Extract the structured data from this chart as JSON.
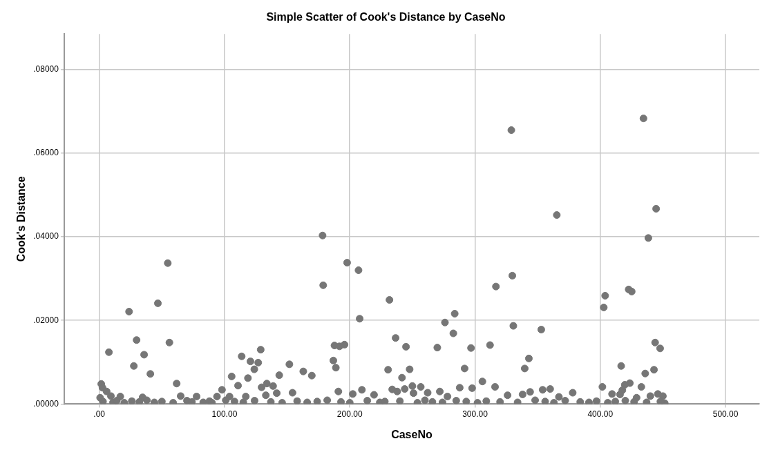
{
  "chart_data": {
    "type": "scatter",
    "title": "Simple Scatter of Cook's Distance by CaseNo",
    "xlabel": "CaseNo",
    "ylabel": "Cook's Distance",
    "xlim": [
      -28,
      527
    ],
    "ylim": [
      0,
      0.0885
    ],
    "xticks": [
      {
        "value": 0,
        "label": ".00"
      },
      {
        "value": 100,
        "label": "100.00"
      },
      {
        "value": 200,
        "label": "200.00"
      },
      {
        "value": 300,
        "label": "300.00"
      },
      {
        "value": 400,
        "label": "400.00"
      },
      {
        "value": 500,
        "label": "500.00"
      }
    ],
    "yticks": [
      {
        "value": 0,
        "label": ".00000"
      },
      {
        "value": 0.02,
        "label": ".02000"
      },
      {
        "value": 0.04,
        "label": ".04000"
      },
      {
        "value": 0.06,
        "label": ".06000"
      },
      {
        "value": 0.08,
        "label": ".08000"
      }
    ],
    "grid": true,
    "marker": "circle",
    "series": [
      {
        "color": "#767676",
        "x": [
          7.7,
          23.8,
          46.8,
          29.8,
          27.6,
          35.8,
          40.8,
          56,
          54.7,
          61.8,
          1.6,
          2.6,
          5.9,
          9.3,
          0.7,
          16.8,
          34.6,
          65,
          77.7,
          94,
          98,
          105.7,
          110.8,
          113.7,
          118.7,
          120.7,
          123.8,
          126.9,
          128.9,
          129.6,
          133.8,
          138.8,
          143.7,
          151.8,
          154.3,
          104,
          117,
          133,
          141.7,
          178.3,
          178.8,
          197.9,
          207,
          207.9,
          231.7,
          236.6,
          244.9,
          269.9,
          276,
          283.8,
          282.7,
          296.8,
          291.7,
          312,
          316.7,
          329.8,
          330.6,
          329,
          365.3,
          434.5,
          444.6,
          438.4,
          162.9,
          169.7,
          187.8,
          191.8,
          195.8,
          186.9,
          188.9,
          190.9,
          209.7,
          219.4,
          230.6,
          241.7,
          247.8,
          233.9,
          237.9,
          243.9,
          250,
          256.7,
          250.9,
          262.2,
          271.9,
          287.8,
          297.7,
          305.9,
          316,
          326,
          202.4,
          278,
          352.9,
          343,
          339.7,
          403.9,
          402.8,
          422.7,
          425.1,
          443.8,
          447.8,
          416.7,
          435.9,
          442.9,
          401.7,
          423.6,
          419.6,
          417.6,
          415.8,
          432.8,
          338,
          344,
          354,
          360,
          378,
          367,
          429,
          440,
          450,
          446,
          409.4,
          451.5,
          3,
          11,
          14,
          20,
          26,
          32,
          38,
          44,
          50,
          59,
          70,
          74,
          83,
          88,
          90,
          101,
          108,
          115,
          124,
          137,
          146,
          158,
          166,
          174,
          182,
          193,
          200,
          214,
          224,
          228,
          240,
          254,
          260,
          266,
          274,
          285,
          293,
          302,
          309,
          320,
          334,
          348,
          356,
          363,
          372,
          384,
          391,
          397,
          406,
          412,
          420,
          427,
          437,
          448
        ],
        "values": [
          0.0124,
          0.0221,
          0.0241,
          0.0153,
          0.0091,
          0.0118,
          0.0072,
          0.0147,
          0.0337,
          0.0049,
          0.0048,
          0.0039,
          0.003,
          0.0019,
          0.0015,
          0.0018,
          0.0016,
          0.0019,
          0.0018,
          0.0018,
          0.0034,
          0.0066,
          0.0044,
          0.0114,
          0.0062,
          0.0102,
          0.0083,
          0.0099,
          0.013,
          0.004,
          0.0049,
          0.0043,
          0.0069,
          0.0095,
          0.0027,
          0.0018,
          0.0018,
          0.0021,
          0.0026,
          0.0403,
          0.0284,
          0.0338,
          0.032,
          0.0204,
          0.0249,
          0.0158,
          0.0137,
          0.0135,
          0.0195,
          0.0216,
          0.0169,
          0.0134,
          0.0085,
          0.0141,
          0.0281,
          0.0307,
          0.0187,
          0.0655,
          0.0452,
          0.0683,
          0.0467,
          0.0397,
          0.0078,
          0.0068,
          0.014,
          0.0138,
          0.0142,
          0.0104,
          0.0087,
          0.003,
          0.0034,
          0.0022,
          0.0082,
          0.0063,
          0.0083,
          0.0035,
          0.003,
          0.0036,
          0.0043,
          0.0041,
          0.0026,
          0.0027,
          0.003,
          0.0039,
          0.0038,
          0.0054,
          0.0041,
          0.0021,
          0.0024,
          0.0018,
          0.0178,
          0.0109,
          0.0085,
          0.0259,
          0.0231,
          0.0274,
          0.0269,
          0.0147,
          0.0133,
          0.0091,
          0.0073,
          0.0082,
          0.0041,
          0.005,
          0.0046,
          0.0033,
          0.0023,
          0.0041,
          0.0023,
          0.0029,
          0.0034,
          0.0036,
          0.0027,
          0.0017,
          0.0015,
          0.0019,
          0.0019,
          0.0024,
          0.0024,
          0.0002,
          0.0006,
          0.0004,
          0.0008,
          0.0003,
          0.0007,
          0.0005,
          0.0009,
          0.0004,
          0.0006,
          0.0003,
          0.0008,
          0.0005,
          0.0004,
          0.0007,
          0.0003,
          0.0009,
          0.0006,
          0.0004,
          0.0008,
          0.0005,
          0.0003,
          0.0007,
          0.0004,
          0.0006,
          0.0009,
          0.0005,
          0.0003,
          0.0008,
          0.0004,
          0.0006,
          0.0007,
          0.0003,
          0.0009,
          0.0005,
          0.0004,
          0.0008,
          0.0006,
          0.0003,
          0.0007,
          0.0005,
          0.0004,
          0.0009,
          0.0006,
          0.0003,
          0.0008,
          0.0005,
          0.0004,
          0.0007,
          0.0003,
          0.0006,
          0.0008,
          0.0005,
          0.0004,
          0.0006
        ]
      }
    ]
  }
}
